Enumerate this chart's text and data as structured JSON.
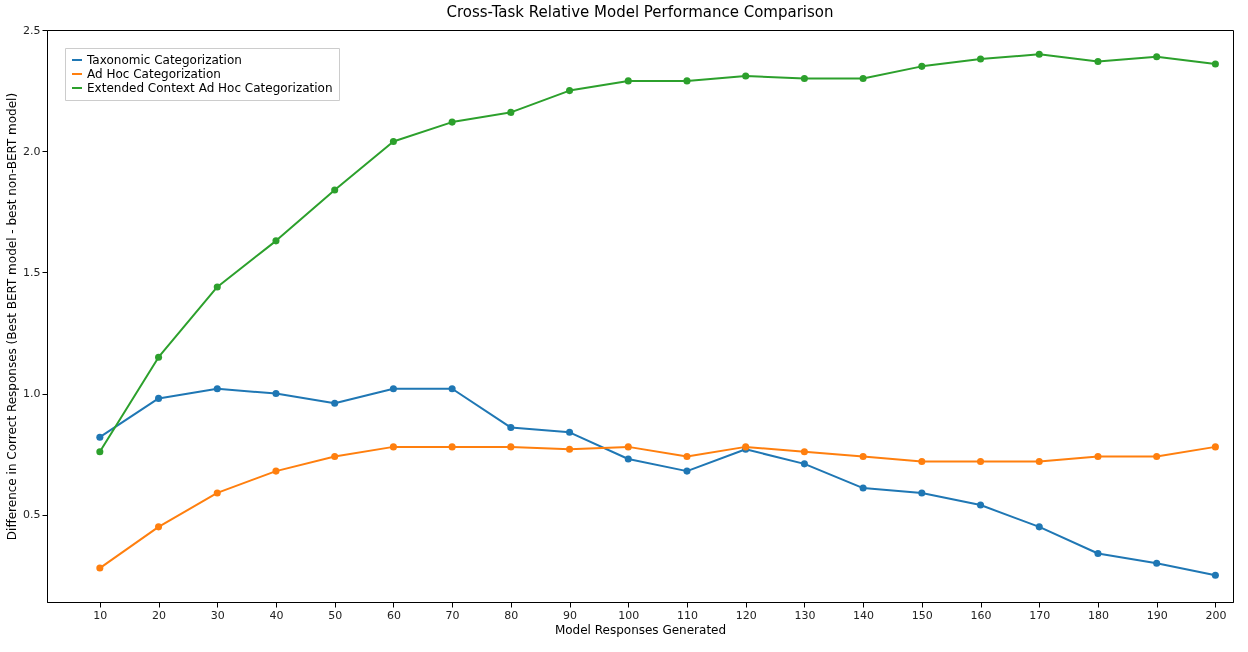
{
  "chart_data": {
    "type": "line",
    "title": "Cross-Task Relative Model Performance Comparison",
    "xlabel": "Model Responses Generated",
    "ylabel": "Difference in Correct Responses (Best BERT model - best non-BERT model)",
    "x": [
      10,
      20,
      30,
      40,
      50,
      60,
      70,
      80,
      90,
      100,
      110,
      120,
      130,
      140,
      150,
      160,
      170,
      180,
      190,
      200
    ],
    "series": [
      {
        "name": "Taxonomic Categorization",
        "color": "#1f77b4",
        "values": [
          0.82,
          0.98,
          1.02,
          1.0,
          0.96,
          1.02,
          1.02,
          0.86,
          0.84,
          0.73,
          0.68,
          0.77,
          0.71,
          0.61,
          0.59,
          0.54,
          0.45,
          0.34,
          0.3,
          0.25
        ]
      },
      {
        "name": "Ad Hoc Categorization",
        "color": "#ff7f0e",
        "values": [
          0.28,
          0.45,
          0.59,
          0.68,
          0.74,
          0.78,
          0.78,
          0.78,
          0.77,
          0.78,
          0.74,
          0.78,
          0.76,
          0.74,
          0.72,
          0.72,
          0.72,
          0.74,
          0.74,
          0.78
        ]
      },
      {
        "name": "Extended Context Ad Hoc Categorization",
        "color": "#2ca02c",
        "values": [
          0.76,
          1.15,
          1.44,
          1.63,
          1.84,
          2.04,
          2.12,
          2.16,
          2.25,
          2.29,
          2.29,
          2.31,
          2.3,
          2.3,
          2.35,
          2.38,
          2.4,
          2.37,
          2.39,
          2.36
        ]
      }
    ],
    "xlim": [
      1,
      203
    ],
    "xticks": [
      10,
      20,
      30,
      40,
      50,
      60,
      70,
      80,
      90,
      100,
      110,
      120,
      130,
      140,
      150,
      160,
      170,
      180,
      190,
      200
    ],
    "ylim": [
      0.14,
      2.5
    ],
    "yticks": [
      0.5,
      {
        "value": 1.0,
        "label": "1.0"
      },
      1.5,
      {
        "value": 2.0,
        "label": "2.0"
      },
      2.5
    ],
    "grid": false,
    "legend": "top left",
    "marker": "circle",
    "line_style": "solid"
  }
}
